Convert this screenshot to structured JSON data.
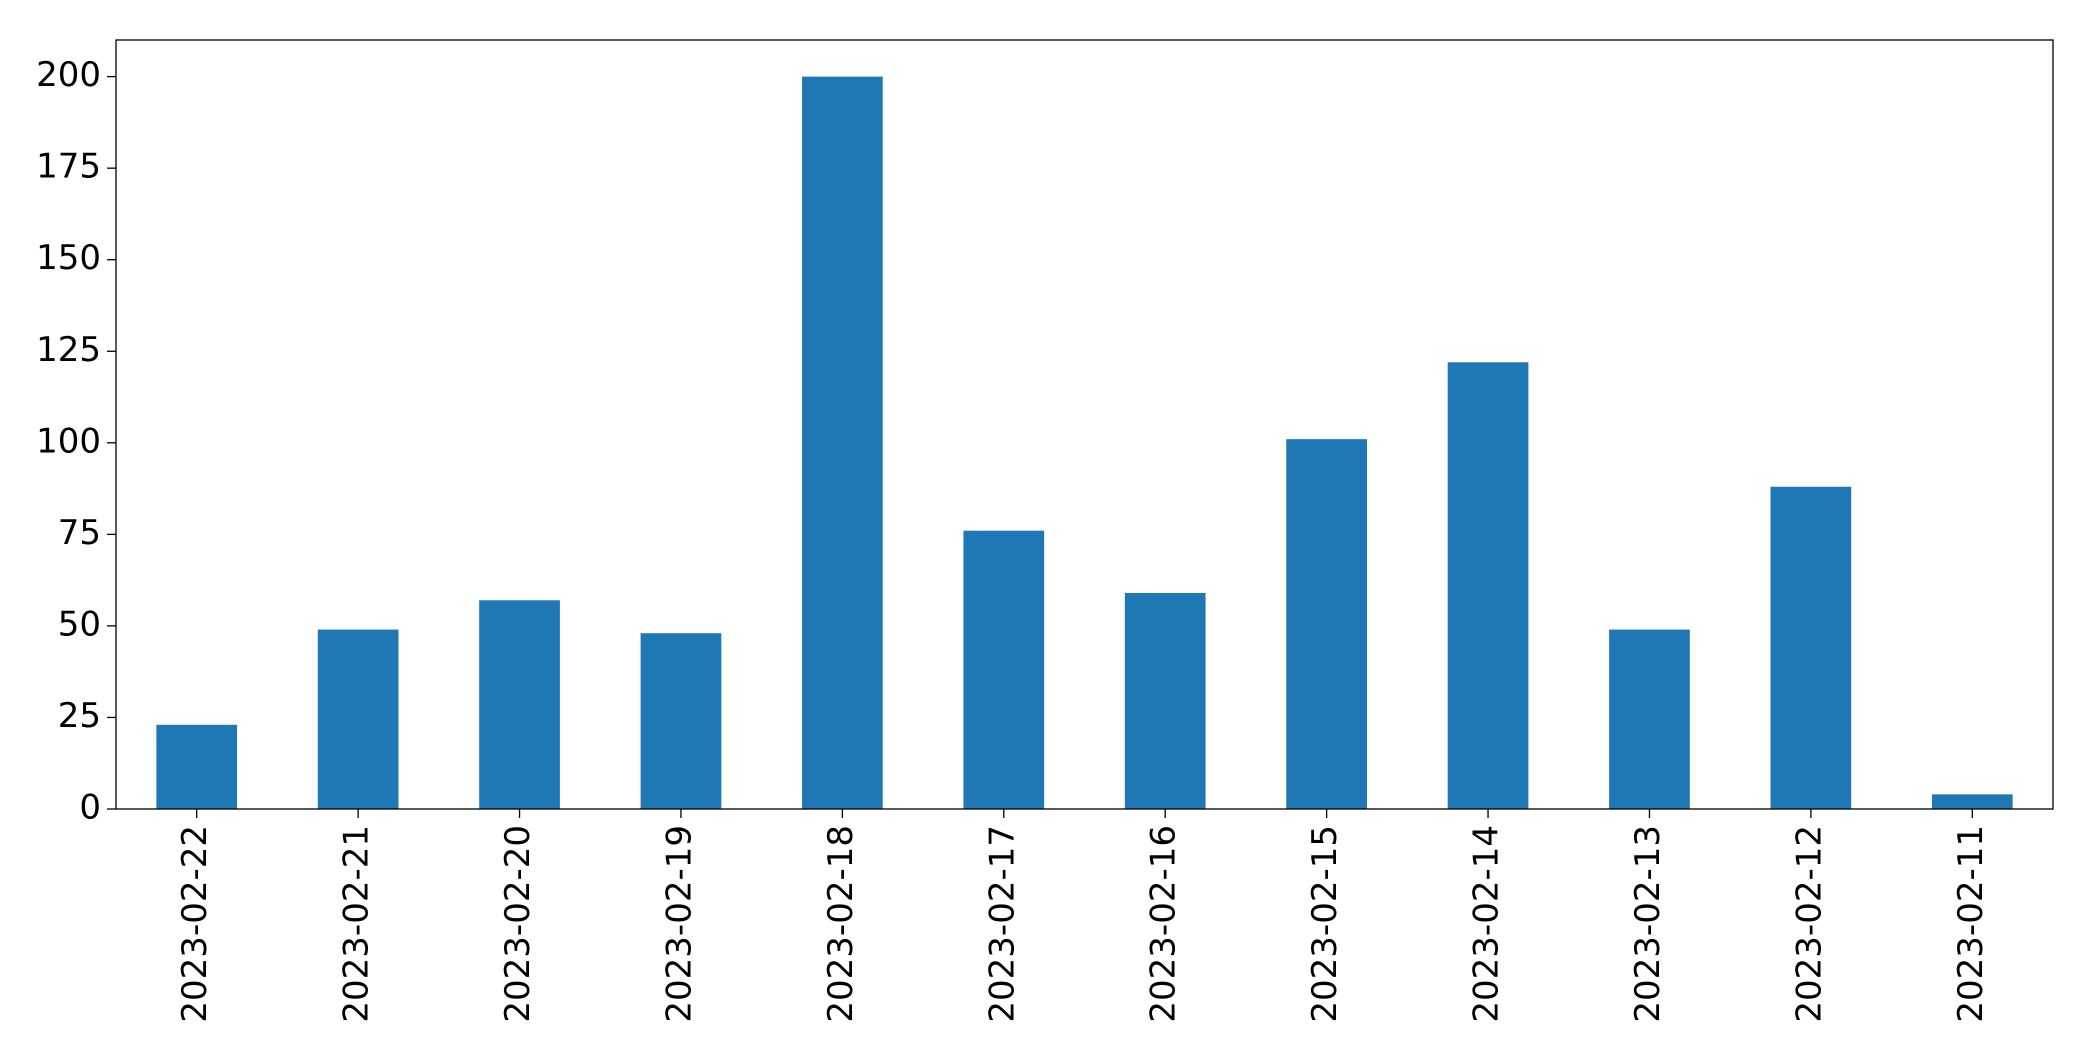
{
  "chart_data": {
    "type": "bar",
    "categories": [
      "2023-02-22",
      "2023-02-21",
      "2023-02-20",
      "2023-02-19",
      "2023-02-18",
      "2023-02-17",
      "2023-02-16",
      "2023-02-15",
      "2023-02-14",
      "2023-02-13",
      "2023-02-12",
      "2023-02-11"
    ],
    "values": [
      23,
      49,
      57,
      48,
      200,
      76,
      59,
      101,
      122,
      49,
      88,
      4
    ],
    "color": "#1f77b4",
    "ylim": [
      0,
      210
    ],
    "yticks": [
      0,
      25,
      50,
      75,
      100,
      125,
      150,
      175,
      200
    ],
    "grid": false
  }
}
